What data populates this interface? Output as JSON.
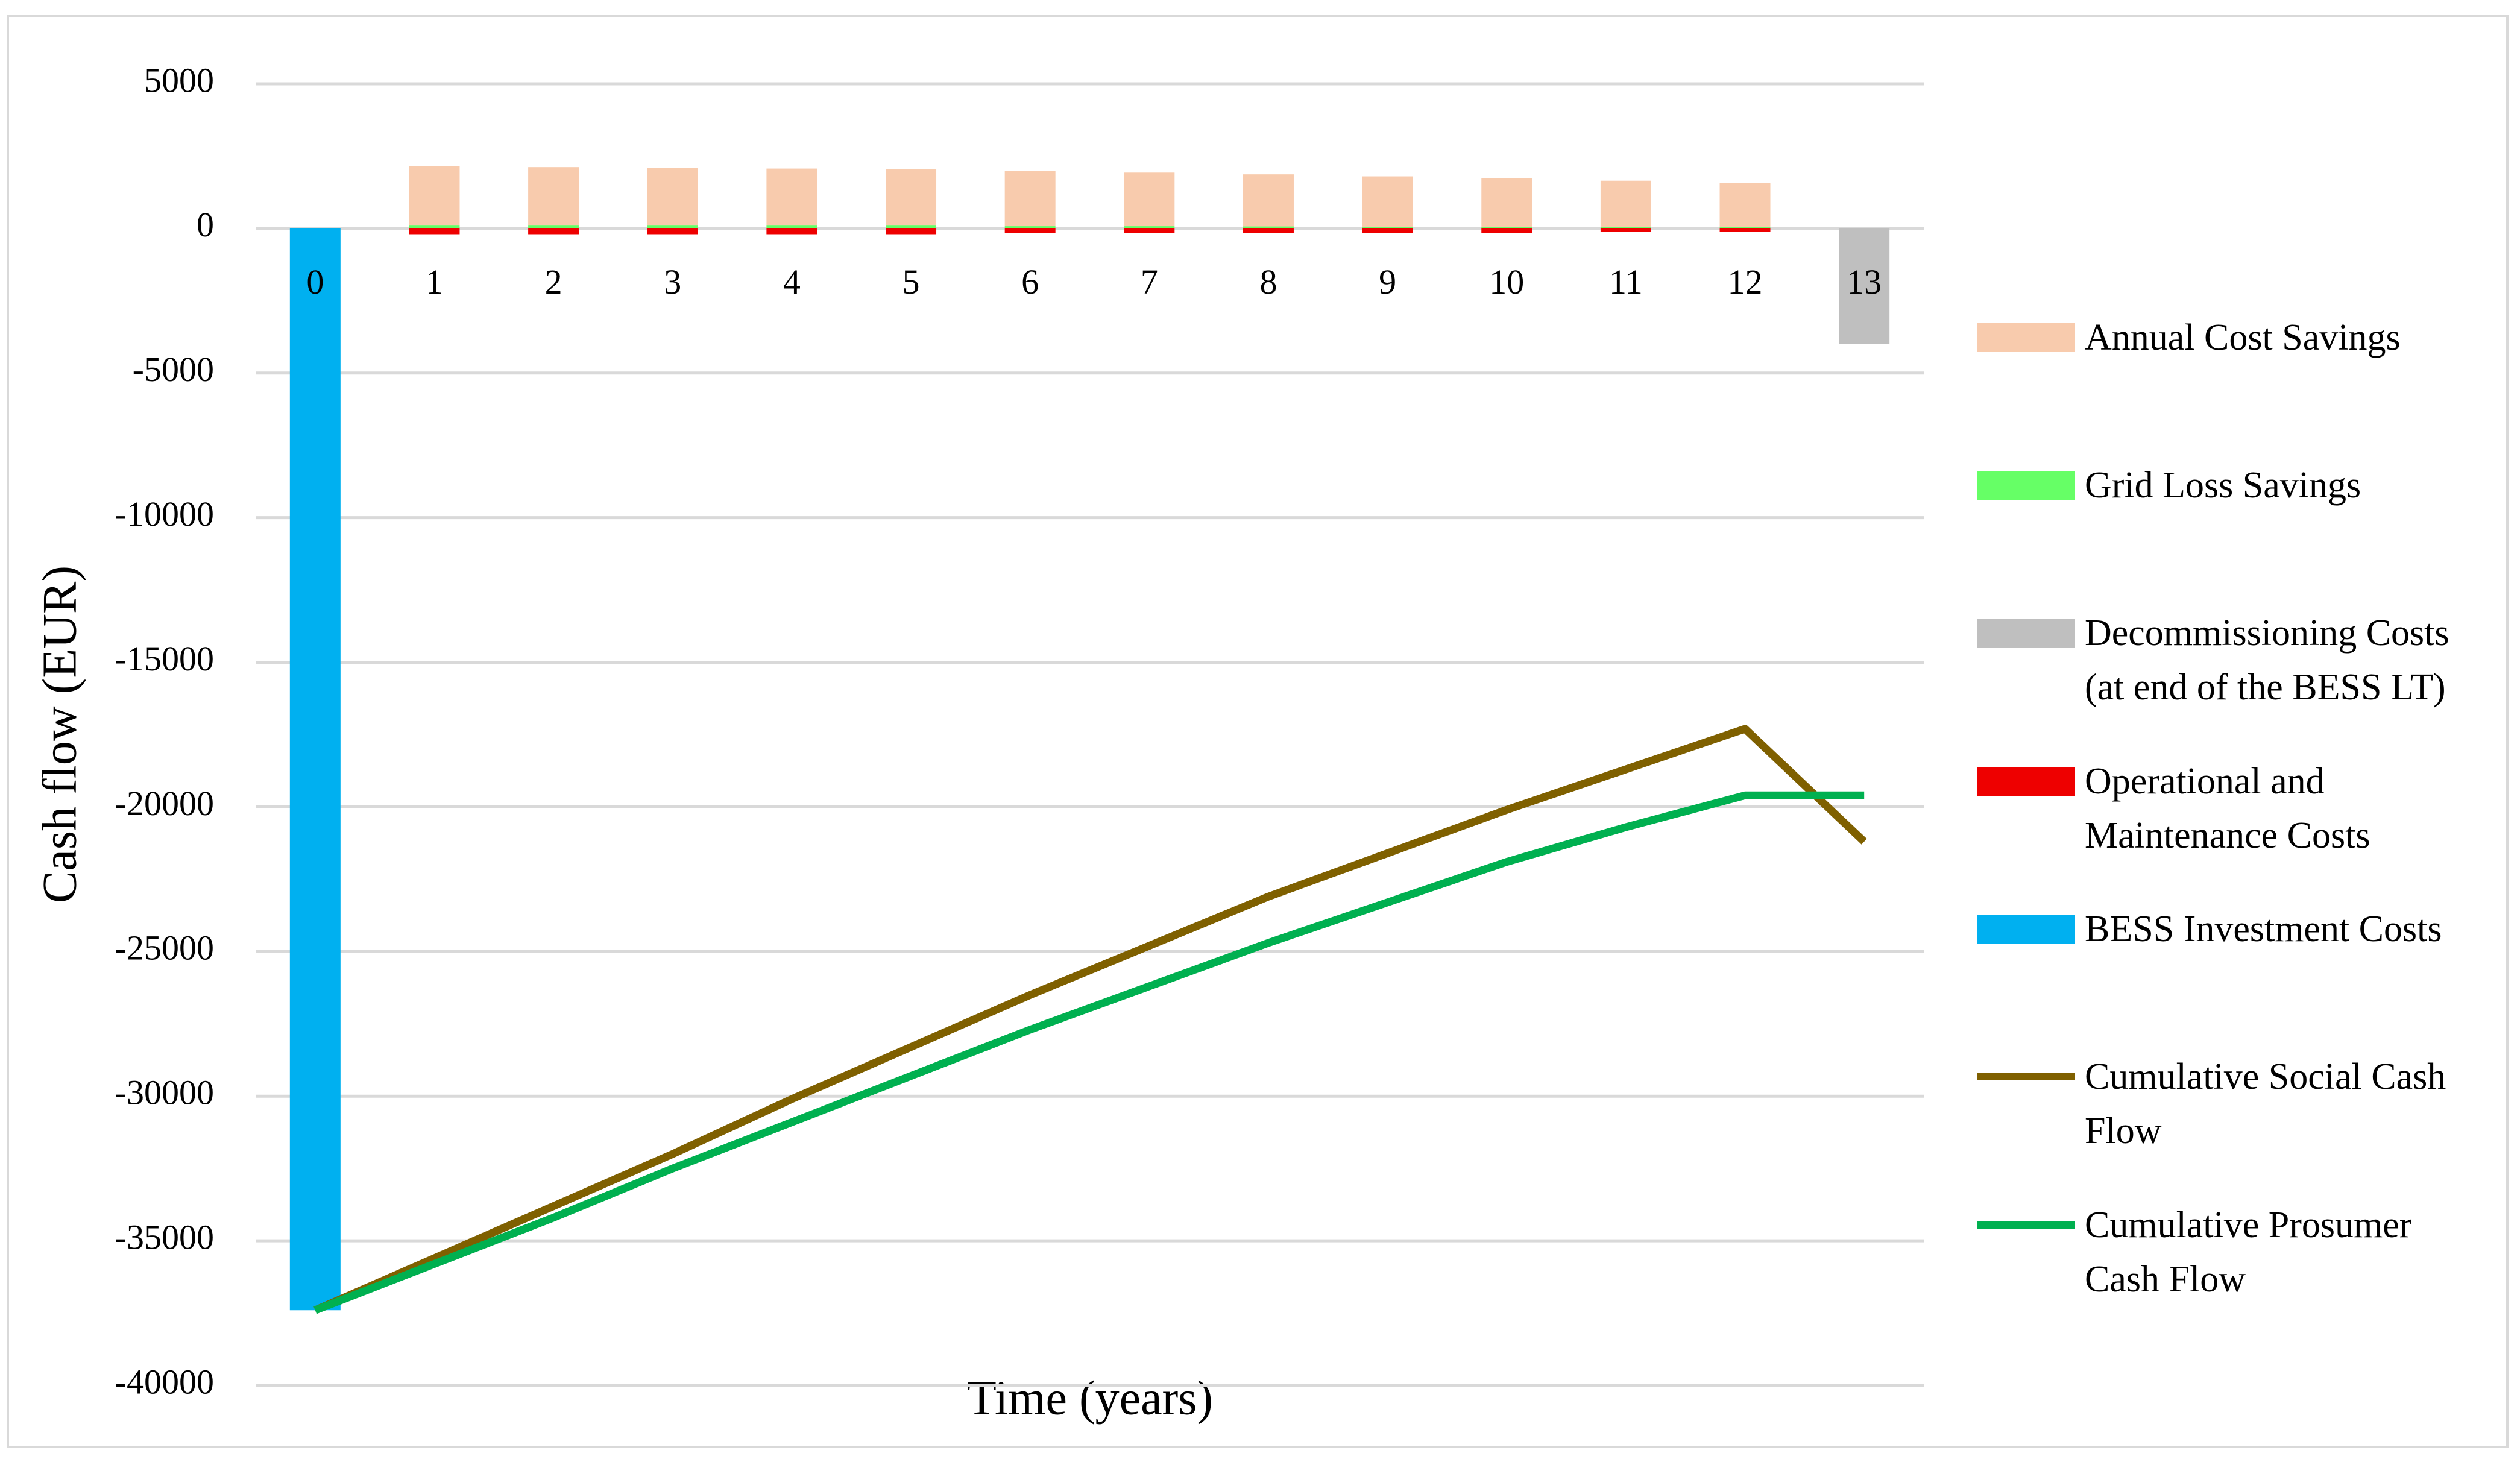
{
  "chart_data": {
    "type": "bar",
    "y_axis_label": "Cash flow (EUR)",
    "x_axis_label": "Time (years)",
    "categories": [
      "0",
      "1",
      "2",
      "3",
      "4",
      "5",
      "6",
      "7",
      "8",
      "9",
      "10",
      "11",
      "12",
      "13"
    ],
    "ylim": [
      -40000,
      5000
    ],
    "yticks": [
      5000,
      0,
      -5000,
      -10000,
      -15000,
      -20000,
      -25000,
      -30000,
      -35000,
      -40000
    ],
    "grid": true,
    "legend": "right",
    "series": [
      {
        "name": "Annual Cost Savings",
        "type": "bar",
        "color": "#f8cbad",
        "values": [
          null,
          2050,
          2020,
          2000,
          1970,
          1940,
          1900,
          1850,
          1800,
          1740,
          1670,
          1600,
          1530,
          null
        ]
      },
      {
        "name": "Grid Loss Savings",
        "type": "bar",
        "color": "#66ff66",
        "values": [
          null,
          100,
          100,
          100,
          100,
          100,
          80,
          80,
          70,
          60,
          60,
          50,
          50,
          null
        ]
      },
      {
        "name": "Decommissioning Costs (at end of the BESS LT)",
        "type": "bar",
        "color": "#bfbfbf",
        "values": [
          null,
          null,
          null,
          null,
          null,
          null,
          null,
          null,
          null,
          null,
          null,
          null,
          null,
          -4000
        ]
      },
      {
        "name": "Operational and Maintenance Costs",
        "type": "bar",
        "color": "#ee0000",
        "values": [
          null,
          -200,
          -200,
          -200,
          -200,
          -200,
          -150,
          -150,
          -150,
          -150,
          -150,
          -120,
          -120,
          null
        ]
      },
      {
        "name": "BESS Investment Costs",
        "type": "bar",
        "color": "#00b0f0",
        "values": [
          -37400,
          null,
          null,
          null,
          null,
          null,
          null,
          null,
          null,
          null,
          null,
          null,
          null,
          null
        ]
      },
      {
        "name": "Cumulative Social Cash Flow",
        "type": "line",
        "color": "#7f6000",
        "values": [
          -37400,
          -35600,
          -33800,
          -32000,
          -30100,
          -28300,
          -26500,
          -24800,
          -23100,
          -21600,
          -20100,
          -18700,
          -17300,
          -21200
        ]
      },
      {
        "name": "Cumulative Prosumer Cash Flow",
        "type": "line",
        "color": "#00b050",
        "values": [
          -37400,
          -35800,
          -34200,
          -32500,
          -30900,
          -29300,
          -27700,
          -26200,
          -24700,
          -23300,
          -21900,
          -20700,
          -19600,
          -19600
        ]
      }
    ]
  }
}
